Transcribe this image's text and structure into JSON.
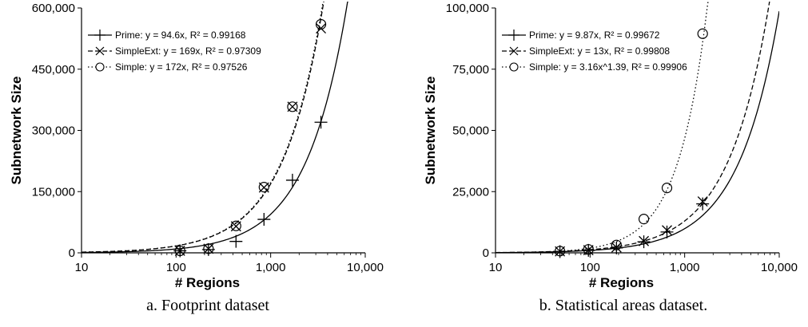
{
  "chart_data": [
    {
      "type": "scatter",
      "caption": "a. Footprint dataset",
      "xlabel": "# Regions",
      "ylabel": "Subnetwork Size",
      "xscale": "log",
      "xlim": [
        10,
        10000
      ],
      "ylim": [
        0,
        600000
      ],
      "x_ticks": [
        "10",
        "100",
        "1,000",
        "10,000"
      ],
      "y_ticks": [
        "0",
        "150,000",
        "300,000",
        "450,000",
        "600,000"
      ],
      "legend_position": "top-left",
      "series": [
        {
          "name": "Prime",
          "fit_label": "Prime: y = 94.6x,  R² = 0.99168",
          "marker": "plus",
          "line_style": "solid",
          "fit": {
            "model": "power",
            "a": 94.6,
            "b": 1
          },
          "x": [
            110,
            220,
            430,
            850,
            1700,
            3400
          ],
          "y": [
            5000,
            8000,
            28000,
            82000,
            178000,
            320000
          ]
        },
        {
          "name": "SimpleExt",
          "fit_label": "SimpleExt: y = 169x,  R² = 0.97309",
          "marker": "x",
          "line_style": "dashed",
          "fit": {
            "model": "power",
            "a": 169,
            "b": 1
          },
          "x": [
            110,
            220,
            430,
            850,
            1700,
            3400
          ],
          "y": [
            5000,
            10000,
            65000,
            160000,
            358000,
            550000
          ]
        },
        {
          "name": "Simple",
          "fit_label": "Simple: y = 172x,  R² = 0.97526",
          "marker": "circle",
          "line_style": "dotted",
          "fit": {
            "model": "power",
            "a": 172,
            "b": 1
          },
          "x": [
            110,
            220,
            430,
            850,
            1700,
            3400
          ],
          "y": [
            5000,
            10000,
            66000,
            161000,
            358000,
            560000
          ]
        }
      ]
    },
    {
      "type": "scatter",
      "caption": "b. Statistical areas dataset.",
      "xlabel": "# Regions",
      "ylabel": "Subnetwork Size",
      "xscale": "log",
      "xlim": [
        10,
        10000
      ],
      "ylim": [
        0,
        100000
      ],
      "x_ticks": [
        "10",
        "100",
        "1,000",
        "10,000"
      ],
      "y_ticks": [
        "0",
        "25,000",
        "50,000",
        "75,000",
        "100,000"
      ],
      "legend_position": "top-left",
      "series": [
        {
          "name": "Prime",
          "fit_label": "Prime: y = 9.87x,  R² = 0.99672",
          "marker": "plus",
          "line_style": "solid",
          "fit": {
            "model": "power",
            "a": 9.87,
            "b": 1
          },
          "x": [
            48,
            96,
            190,
            370,
            650,
            1550
          ],
          "y": [
            500,
            1000,
            2000,
            4500,
            8500,
            20000
          ]
        },
        {
          "name": "SimpleExt",
          "fit_label": "SimpleExt: y = 13x,  R² = 0.99808",
          "marker": "x",
          "line_style": "dashed",
          "fit": {
            "model": "power",
            "a": 13,
            "b": 1
          },
          "x": [
            48,
            96,
            190,
            370,
            650,
            1550
          ],
          "y": [
            600,
            1100,
            2200,
            4800,
            9200,
            21000
          ]
        },
        {
          "name": "Simple",
          "fit_label": "Simple: y = 3.16x^1.39,  R² = 0.99906",
          "marker": "circle",
          "line_style": "dotted",
          "fit": {
            "model": "power",
            "a": 3.16,
            "b": 1.39
          },
          "x": [
            48,
            96,
            190,
            370,
            650,
            1550
          ],
          "y": [
            700,
            1400,
            3200,
            13800,
            26500,
            89500
          ]
        }
      ]
    }
  ]
}
